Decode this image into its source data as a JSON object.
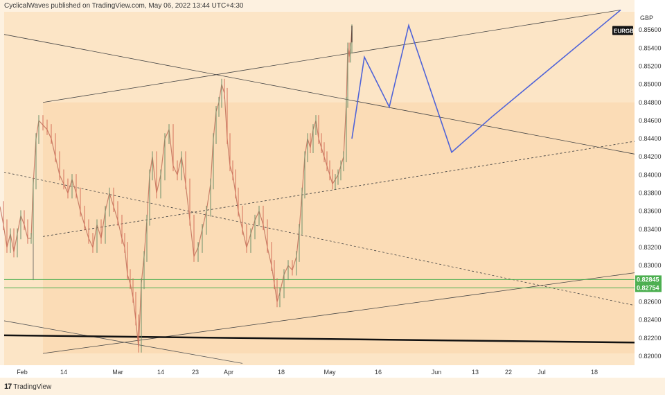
{
  "header": {
    "published": "CyclicalWaves published on TradingView.com, May 06, 2022 13:44 UTC+4:30"
  },
  "footer": {
    "brand": "TradingView",
    "logo_glyph": "17"
  },
  "chart_data": {
    "type": "line",
    "symbol": "EURGBP",
    "currency": "GBP",
    "ylim": [
      0.819,
      0.858
    ],
    "y_ticks": [
      "0.85600",
      "0.85400",
      "0.85200",
      "0.85000",
      "0.84800",
      "0.84600",
      "0.84400",
      "0.84200",
      "0.84000",
      "0.83800",
      "0.83600",
      "0.83400",
      "0.83200",
      "0.83000",
      "0.82800",
      "0.82600",
      "0.82400",
      "0.82200",
      "0.82000"
    ],
    "x_ticks": [
      "Feb",
      "14",
      "Mar",
      "14",
      "23",
      "Apr",
      "18",
      "May",
      "16",
      "Jun",
      "13",
      "22",
      "Jul",
      "18"
    ],
    "price_labels": [
      {
        "text": "0.82845",
        "value": 0.82845,
        "color": "#4caf50"
      },
      {
        "text": "0.82754",
        "value": 0.82754,
        "color": "#4caf50"
      }
    ],
    "price_series": [
      [
        0,
        0.8365
      ],
      [
        5,
        0.8345
      ],
      [
        10,
        0.832
      ],
      [
        15,
        0.8335
      ],
      [
        20,
        0.8315
      ],
      [
        25,
        0.8335
      ],
      [
        30,
        0.8355
      ],
      [
        35,
        0.8345
      ],
      [
        40,
        0.833
      ],
      [
        45,
        0.833
      ],
      [
        48,
        0.839
      ],
      [
        52,
        0.844
      ],
      [
        56,
        0.846
      ],
      [
        62,
        0.8455
      ],
      [
        68,
        0.845
      ],
      [
        74,
        0.844
      ],
      [
        80,
        0.842
      ],
      [
        86,
        0.84
      ],
      [
        92,
        0.839
      ],
      [
        98,
        0.838
      ],
      [
        104,
        0.8395
      ],
      [
        110,
        0.838
      ],
      [
        116,
        0.836
      ],
      [
        122,
        0.8345
      ],
      [
        128,
        0.833
      ],
      [
        134,
        0.832
      ],
      [
        140,
        0.8345
      ],
      [
        146,
        0.833
      ],
      [
        152,
        0.836
      ],
      [
        158,
        0.838
      ],
      [
        164,
        0.8365
      ],
      [
        170,
        0.835
      ],
      [
        176,
        0.833
      ],
      [
        180,
        0.832
      ],
      [
        184,
        0.829
      ],
      [
        188,
        0.828
      ],
      [
        192,
        0.8265
      ],
      [
        196,
        0.824
      ],
      [
        200,
        0.821
      ],
      [
        204,
        0.828
      ],
      [
        208,
        0.831
      ],
      [
        212,
        0.835
      ],
      [
        216,
        0.84
      ],
      [
        220,
        0.842
      ],
      [
        226,
        0.838
      ],
      [
        232,
        0.84
      ],
      [
        238,
        0.844
      ],
      [
        244,
        0.845
      ],
      [
        250,
        0.841
      ],
      [
        256,
        0.84
      ],
      [
        262,
        0.842
      ],
      [
        268,
        0.839
      ],
      [
        274,
        0.835
      ],
      [
        280,
        0.831
      ],
      [
        286,
        0.832
      ],
      [
        292,
        0.834
      ],
      [
        298,
        0.836
      ],
      [
        304,
        0.839
      ],
      [
        308,
        0.844
      ],
      [
        312,
        0.847
      ],
      [
        316,
        0.848
      ],
      [
        320,
        0.85
      ],
      [
        324,
        0.849
      ],
      [
        328,
        0.844
      ],
      [
        332,
        0.841
      ],
      [
        336,
        0.84
      ],
      [
        340,
        0.838
      ],
      [
        344,
        0.836
      ],
      [
        350,
        0.834
      ],
      [
        356,
        0.832
      ],
      [
        362,
        0.8335
      ],
      [
        368,
        0.835
      ],
      [
        374,
        0.836
      ],
      [
        380,
        0.8345
      ],
      [
        386,
        0.832
      ],
      [
        392,
        0.83
      ],
      [
        396,
        0.828
      ],
      [
        400,
        0.826
      ],
      [
        404,
        0.827
      ],
      [
        410,
        0.829
      ],
      [
        416,
        0.83
      ],
      [
        422,
        0.8295
      ],
      [
        428,
        0.831
      ],
      [
        432,
        0.834
      ],
      [
        436,
        0.838
      ],
      [
        440,
        0.842
      ],
      [
        444,
        0.844
      ],
      [
        448,
        0.843
      ],
      [
        452,
        0.845
      ],
      [
        456,
        0.846
      ],
      [
        460,
        0.844
      ],
      [
        464,
        0.843
      ],
      [
        468,
        0.842
      ],
      [
        472,
        0.841
      ],
      [
        476,
        0.84
      ],
      [
        480,
        0.839
      ],
      [
        484,
        0.8395
      ],
      [
        488,
        0.84
      ],
      [
        492,
        0.841
      ],
      [
        496,
        0.842
      ],
      [
        500,
        0.848
      ],
      [
        502,
        0.854
      ],
      [
        504,
        0.853
      ],
      [
        506,
        0.854
      ],
      [
        508,
        0.856
      ]
    ],
    "forecast": [
      [
        508,
        0.844
      ],
      [
        526,
        0.853
      ],
      [
        562,
        0.8475
      ],
      [
        590,
        0.8565
      ],
      [
        652,
        0.8425
      ],
      [
        710,
        0.8464
      ],
      [
        896,
        0.8582
      ]
    ],
    "annotations": {
      "upper_channel_line": [
        [
          62,
          0.848
        ],
        [
          896,
          0.8582
        ]
      ],
      "lower_channel_line": [
        [
          62,
          0.8203
        ],
        [
          916,
          0.8292
        ]
      ],
      "descending_resistance": [
        [
          6,
          0.8555
        ],
        [
          916,
          0.8423
        ]
      ],
      "descending_dashed_mid": [
        [
          6,
          0.8403
        ],
        [
          916,
          0.8256
        ]
      ],
      "ascending_dashed_mid": [
        [
          62,
          0.8332
        ],
        [
          916,
          0.8437
        ]
      ],
      "bottom_descending": [
        [
          6,
          0.8239
        ],
        [
          350,
          0.8192
        ]
      ],
      "thick_support": [
        [
          6,
          0.8223
        ],
        [
          916,
          0.8215
        ]
      ],
      "green_levels": [
        0.82845,
        0.82754
      ],
      "vertical_start": [
        [
          48,
          0.8284
        ],
        [
          48,
          0.8395
        ]
      ]
    }
  }
}
